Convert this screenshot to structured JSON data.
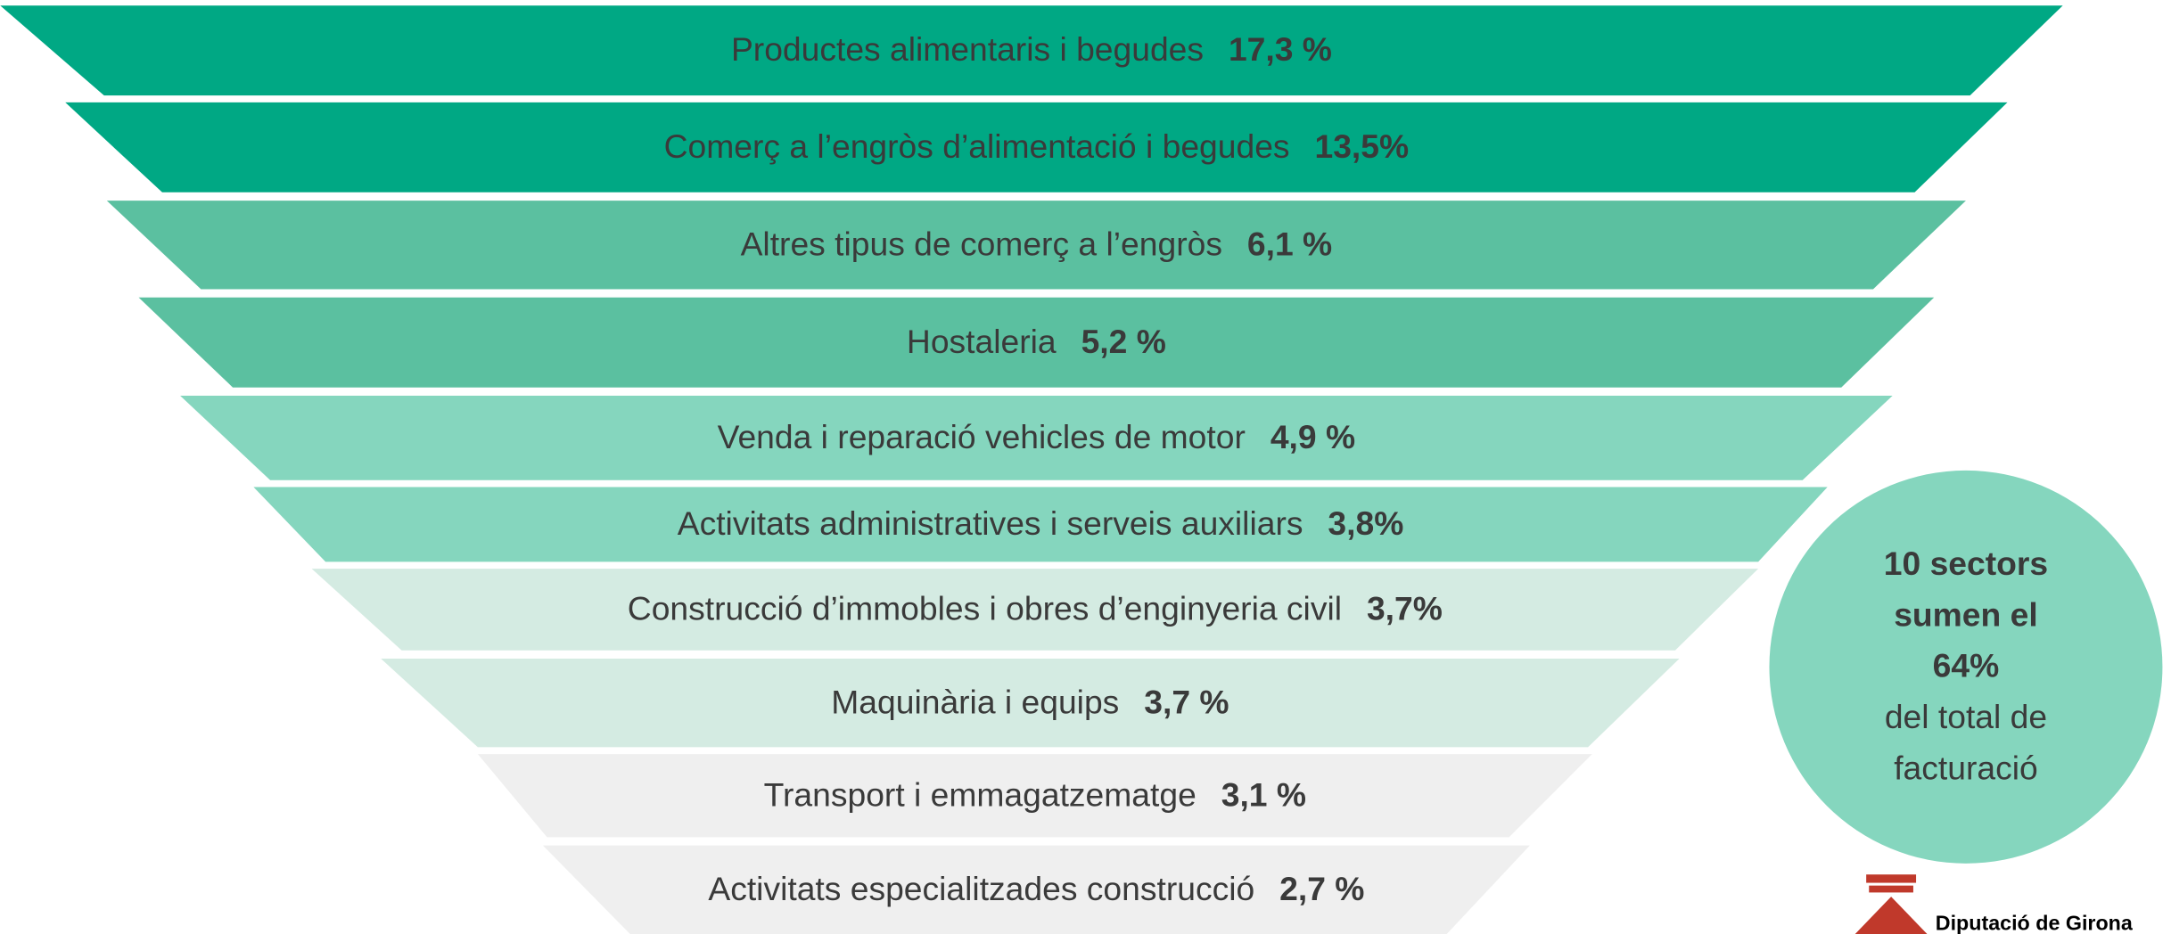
{
  "rows": [
    {
      "label": "Productes alimentaris i begudes",
      "value": "17,3 %",
      "color": "#00a884"
    },
    {
      "label": "Comerç a l’engròs d’alimentació i begudes",
      "value": "13,5%",
      "color": "#00a884"
    },
    {
      "label": "Altres tipus de comerç a l’engròs",
      "value": "6,1 %",
      "color": "#5bc0a0"
    },
    {
      "label": "Hostaleria",
      "value": "5,2 %",
      "color": "#5bc0a0"
    },
    {
      "label": "Venda i reparació vehicles de motor",
      "value": "4,9 %",
      "color": "#85d6be"
    },
    {
      "label": "Activitats administratives i serveis auxiliars",
      "value": "3,8%",
      "color": "#85d6be"
    },
    {
      "label": "Construcció d’immobles i obres d’enginyeria civil",
      "value": "3,7%",
      "color": "#d4ebe2"
    },
    {
      "label": "Maquinària i equips",
      "value": "3,7 %",
      "color": "#d4ebe2"
    },
    {
      "label": "Transport i emmagatzematge",
      "value": "3,1 %",
      "color": "#efefef"
    },
    {
      "label": "Activitats especialitzades construcció",
      "value": "2,7 %",
      "color": "#efefef"
    }
  ],
  "callout": {
    "bold_lines": [
      "10 sectors",
      "sumen el",
      "64%"
    ],
    "lines": [
      "del total de",
      "facturació"
    ],
    "color": "#85d6be"
  },
  "logo": {
    "text": "Diputació de Girona"
  }
}
